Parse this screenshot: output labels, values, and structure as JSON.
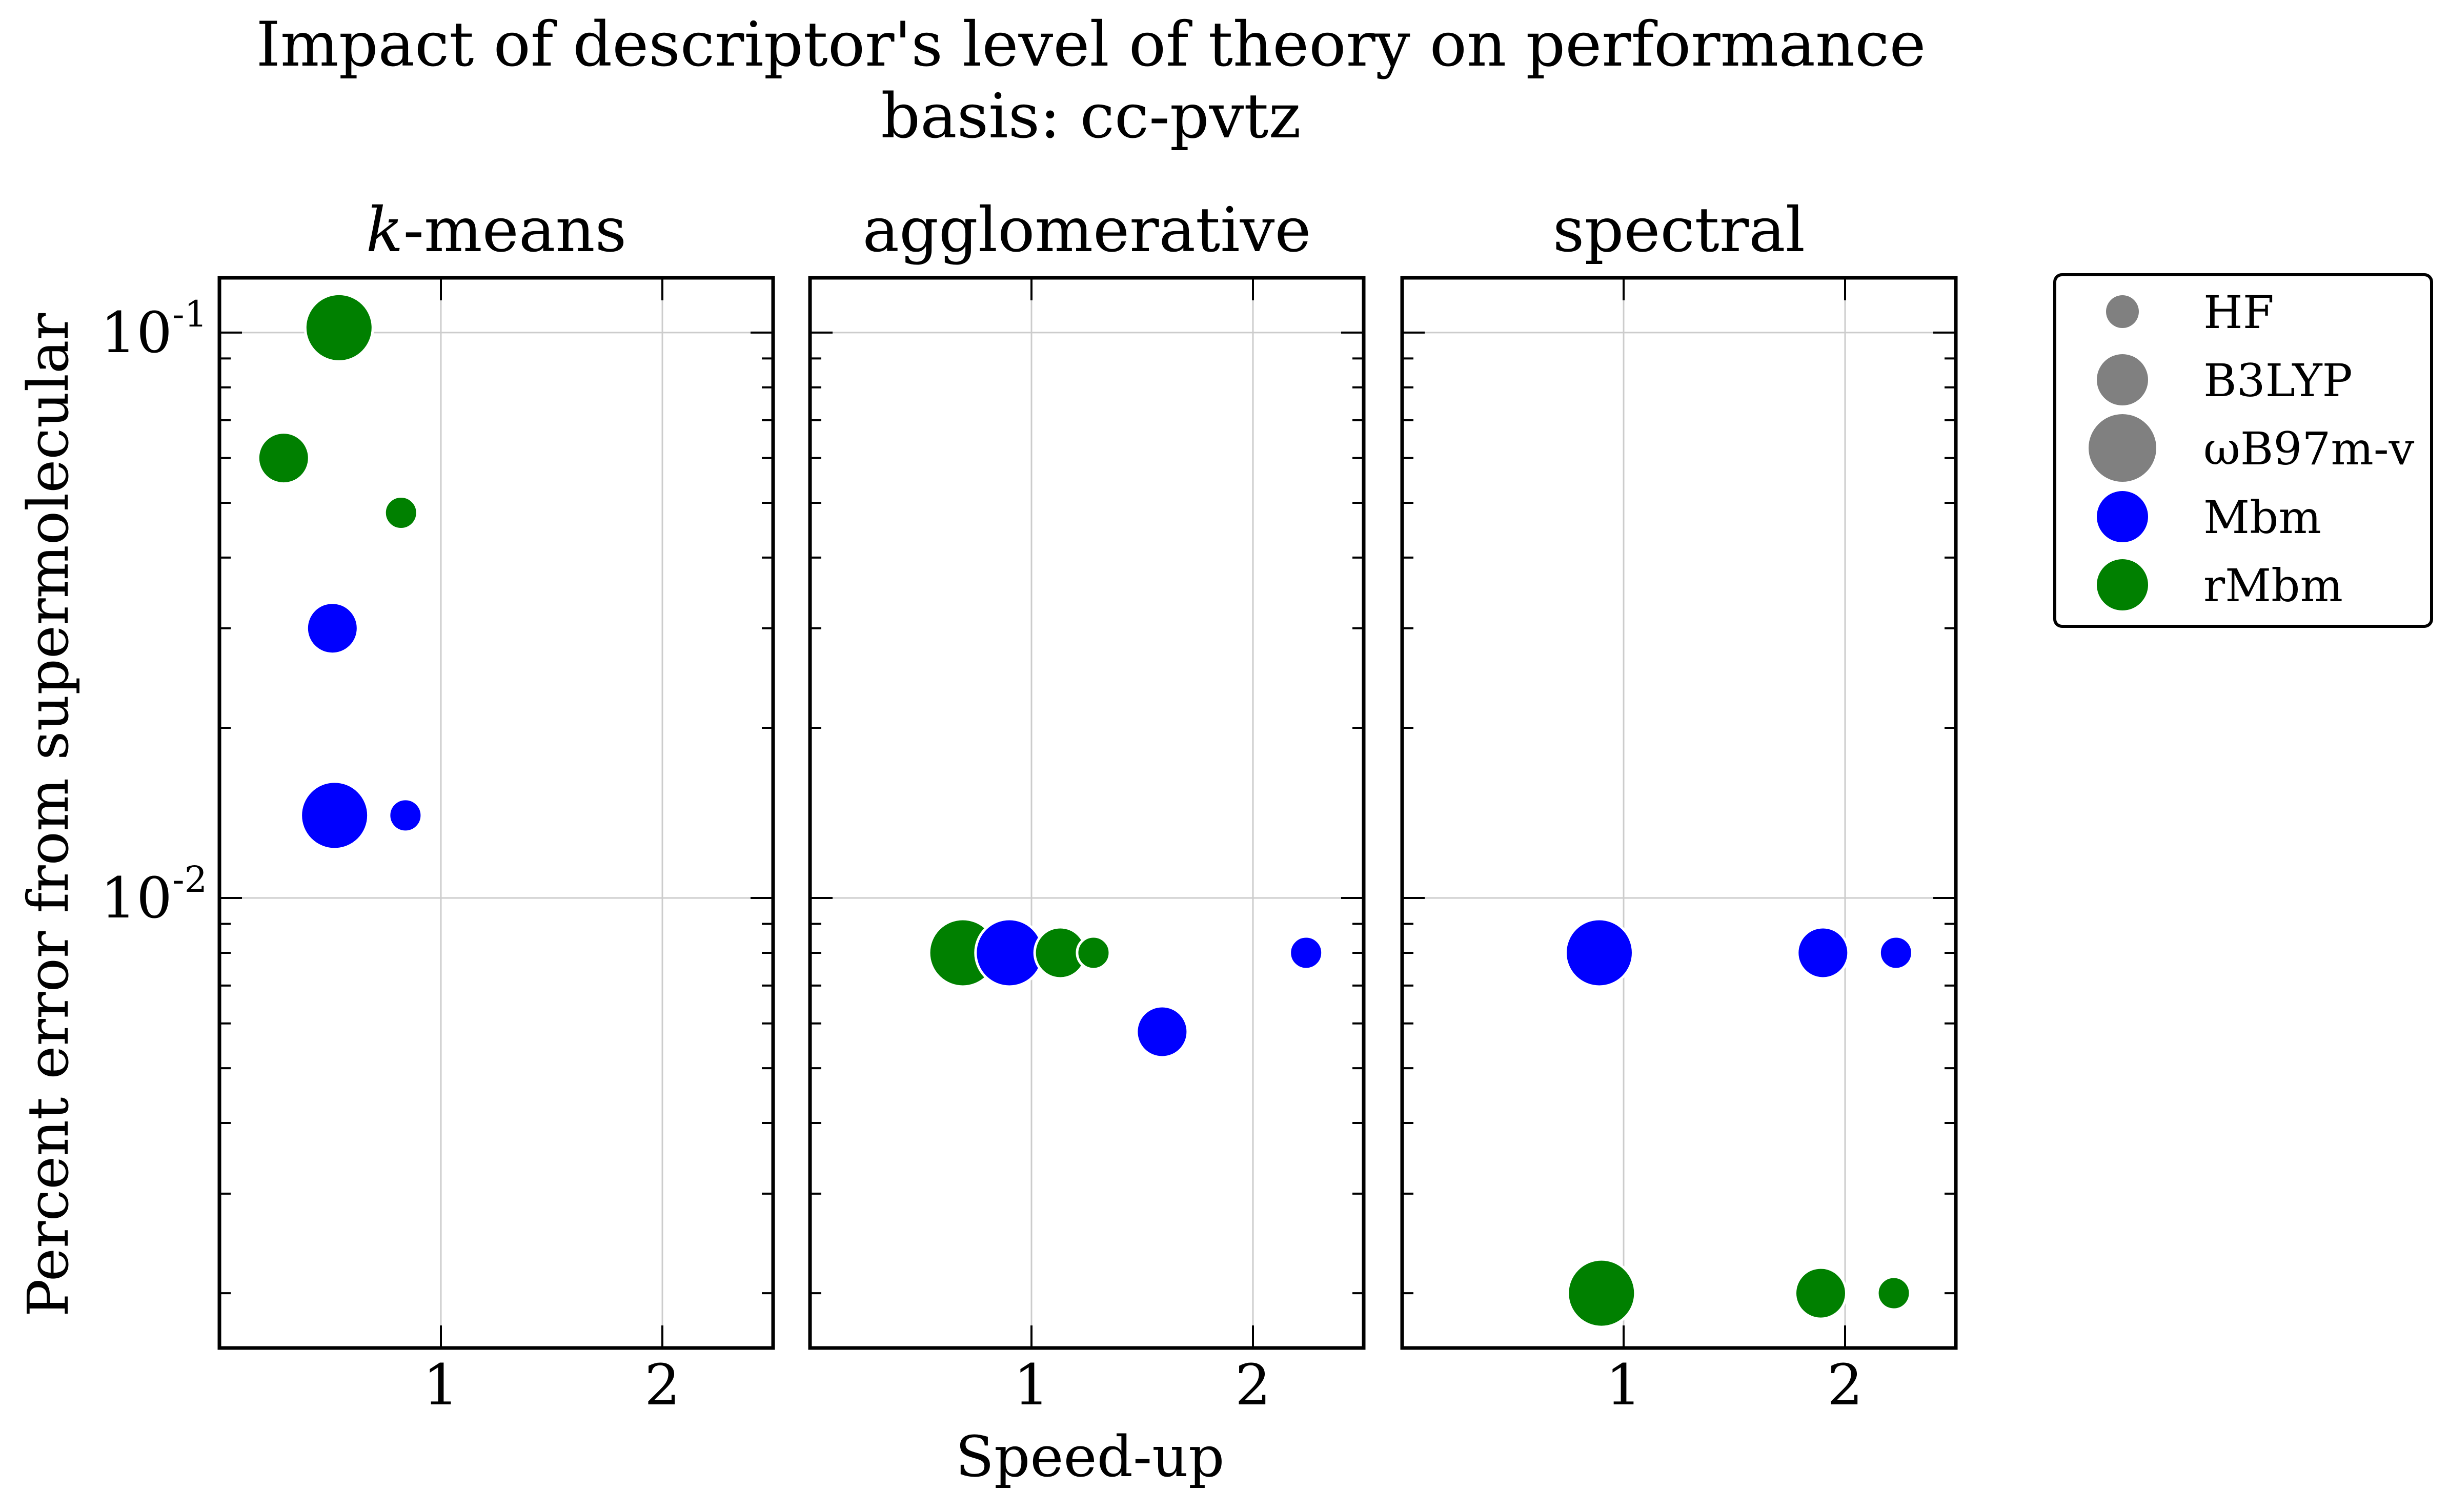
{
  "chart_data": {
    "type": "scatter",
    "title": "Impact of descriptor's level of theory on performance",
    "subtitle": "basis: cc-pvtz",
    "xlabel": "Speed-up",
    "ylabel": "Percent error from supermolecular",
    "yscale": "log",
    "ylim": [
      0.0016,
      0.125
    ],
    "xlim": [
      0,
      2.5
    ],
    "x_ticks": [
      "1",
      "2"
    ],
    "y_ticks": [
      {
        "value": 0.1,
        "base": "10",
        "exp": "-1"
      },
      {
        "value": 0.01,
        "base": "10",
        "exp": "-2"
      }
    ],
    "grid": true,
    "legend_position": "outside-right",
    "legend": [
      {
        "label": "HF",
        "kind": "size",
        "level": "HF"
      },
      {
        "label": "B3LYP",
        "kind": "size",
        "level": "B3LYP"
      },
      {
        "label": "ωB97m-v",
        "kind": "size",
        "level": "wB97m-v"
      },
      {
        "label": "Mbm",
        "kind": "color",
        "series": "Mbm"
      },
      {
        "label": "rMbm",
        "kind": "color",
        "series": "rMbm"
      }
    ],
    "colors": {
      "Mbm": "#0000ff",
      "rMbm": "#008000",
      "size_legend": "#808080"
    },
    "panels": [
      {
        "title": "k-means",
        "points": [
          {
            "series": "rMbm",
            "level": "wB97m-v",
            "x": 0.54,
            "y": 0.102
          },
          {
            "series": "rMbm",
            "level": "B3LYP",
            "x": 0.29,
            "y": 0.06
          },
          {
            "series": "rMbm",
            "level": "HF",
            "x": 0.82,
            "y": 0.048
          },
          {
            "series": "Mbm",
            "level": "B3LYP",
            "x": 0.51,
            "y": 0.03
          },
          {
            "series": "Mbm",
            "level": "wB97m-v",
            "x": 0.52,
            "y": 0.014
          },
          {
            "series": "Mbm",
            "level": "HF",
            "x": 0.84,
            "y": 0.014
          }
        ]
      },
      {
        "title": "agglomerative",
        "points": [
          {
            "series": "rMbm",
            "level": "wB97m-v",
            "x": 0.69,
            "y": 0.008
          },
          {
            "series": "Mbm",
            "level": "wB97m-v",
            "x": 0.9,
            "y": 0.008
          },
          {
            "series": "rMbm",
            "level": "B3LYP",
            "x": 1.13,
            "y": 0.008
          },
          {
            "series": "rMbm",
            "level": "HF",
            "x": 1.28,
            "y": 0.008
          },
          {
            "series": "Mbm",
            "level": "B3LYP",
            "x": 1.59,
            "y": 0.0058
          },
          {
            "series": "Mbm",
            "level": "HF",
            "x": 2.24,
            "y": 0.008
          }
        ]
      },
      {
        "title": "spectral",
        "points": [
          {
            "series": "Mbm",
            "level": "wB97m-v",
            "x": 0.89,
            "y": 0.008
          },
          {
            "series": "Mbm",
            "level": "B3LYP",
            "x": 1.9,
            "y": 0.008
          },
          {
            "series": "Mbm",
            "level": "HF",
            "x": 2.23,
            "y": 0.008
          },
          {
            "series": "rMbm",
            "level": "wB97m-v",
            "x": 0.9,
            "y": 0.002
          },
          {
            "series": "rMbm",
            "level": "B3LYP",
            "x": 1.89,
            "y": 0.002
          },
          {
            "series": "rMbm",
            "level": "HF",
            "x": 2.22,
            "y": 0.002
          }
        ]
      }
    ]
  }
}
